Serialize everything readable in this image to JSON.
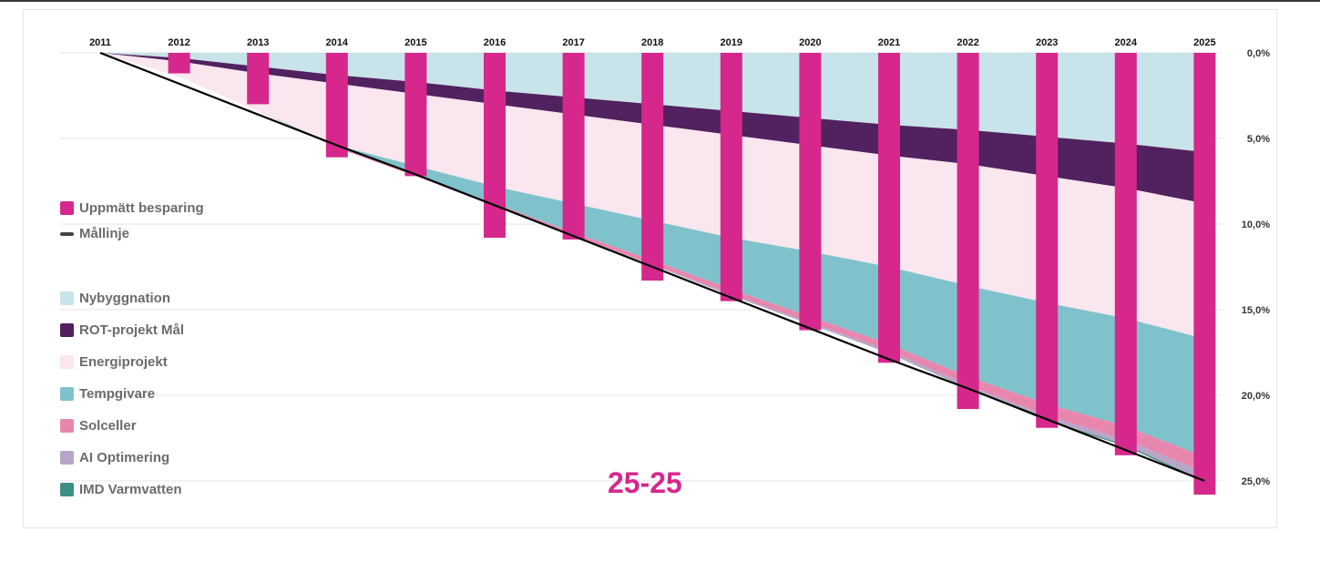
{
  "chart_data": {
    "type": "area",
    "x": [
      "2011",
      "2012",
      "2013",
      "2014",
      "2015",
      "2016",
      "2017",
      "2018",
      "2019",
      "2020",
      "2021",
      "2022",
      "2023",
      "2024",
      "2025"
    ],
    "y_ticks": [
      "0,0%",
      "5,0%",
      "10,0%",
      "15,0%",
      "20,0%",
      "25,0%"
    ],
    "ylim": [
      0,
      25
    ],
    "y_inverted": true,
    "y_axis_position": "right",
    "x_axis_position": "top",
    "grid": true,
    "legend_position": "left",
    "stacked_series": [
      {
        "name": "Nybyggnation",
        "color": "#c8e3e9",
        "values": [
          0,
          0.3,
          0.8,
          1.3,
          1.7,
          2.2,
          2.6,
          3.0,
          3.4,
          3.8,
          4.2,
          4.5,
          4.9,
          5.3,
          5.8
        ]
      },
      {
        "name": "ROT-projekt Mål",
        "color": "#52215f",
        "values": [
          0,
          0.2,
          0.4,
          0.5,
          0.7,
          0.8,
          1.0,
          1.2,
          1.4,
          1.6,
          1.8,
          2.0,
          2.3,
          2.6,
          3.0
        ]
      },
      {
        "name": "Energiprojekt",
        "color": "#fae6ee",
        "values": [
          0,
          0.9,
          2.2,
          3.6,
          4.2,
          4.8,
          5.2,
          5.6,
          6.0,
          6.2,
          6.5,
          7.1,
          7.4,
          7.6,
          7.9
        ]
      },
      {
        "name": "Tempgivare",
        "color": "#7fc2cb",
        "values": [
          0,
          0,
          0,
          0.1,
          0.5,
          1.0,
          1.7,
          2.3,
          3.0,
          3.8,
          4.5,
          5.3,
          5.9,
          6.3,
          6.9
        ]
      },
      {
        "name": "Solceller",
        "color": "#e787ad",
        "values": [
          0,
          0,
          0,
          0.05,
          0.1,
          0.15,
          0.2,
          0.25,
          0.3,
          0.35,
          0.4,
          0.5,
          0.7,
          0.8,
          0.9
        ]
      },
      {
        "name": "AI Optimering",
        "color": "#b7a6c7",
        "values": [
          0,
          0,
          0,
          0,
          0,
          0,
          0.02,
          0.05,
          0.08,
          0.1,
          0.15,
          0.2,
          0.25,
          0.3,
          0.5
        ]
      },
      {
        "name": "IMD Varmvatten",
        "color": "#3d8f84",
        "values": [
          0,
          0,
          0,
          0,
          0,
          0,
          0,
          0,
          0,
          0,
          0,
          0.02,
          0.05,
          0.08,
          0.1
        ]
      }
    ],
    "bar_series": {
      "name": "Uppmätt besparing",
      "color": "#d6288c",
      "values": [
        0,
        1.2,
        3.0,
        6.1,
        7.2,
        10.8,
        10.9,
        13.3,
        14.5,
        16.2,
        18.1,
        20.8,
        21.9,
        23.5,
        25.8
      ]
    },
    "line_series": {
      "name": "Mållinje",
      "color": "#000000",
      "values": [
        0,
        1.8,
        3.6,
        5.4,
        7.1,
        8.9,
        10.7,
        12.5,
        14.3,
        16.1,
        17.9,
        19.6,
        21.4,
        23.2,
        25.0
      ]
    }
  },
  "legend": {
    "bar_label": "Uppmätt besparing",
    "bar_color": "#d6288c",
    "line_label": "Mållinje",
    "line_color": "#444444",
    "items": [
      {
        "label": "Nybyggnation",
        "color": "#c8e3e9"
      },
      {
        "label": "ROT-projekt Mål",
        "color": "#52215f"
      },
      {
        "label": "Energiprojekt",
        "color": "#fae6ee"
      },
      {
        "label": "Tempgivare",
        "color": "#7fc2cb"
      },
      {
        "label": "Solceller",
        "color": "#e787ad"
      },
      {
        "label": "AI Optimering",
        "color": "#b7a6c7"
      },
      {
        "label": "IMD Varmvatten",
        "color": "#3d8f84"
      }
    ]
  },
  "badge": {
    "text": "25-25",
    "color": "#d6288c"
  }
}
